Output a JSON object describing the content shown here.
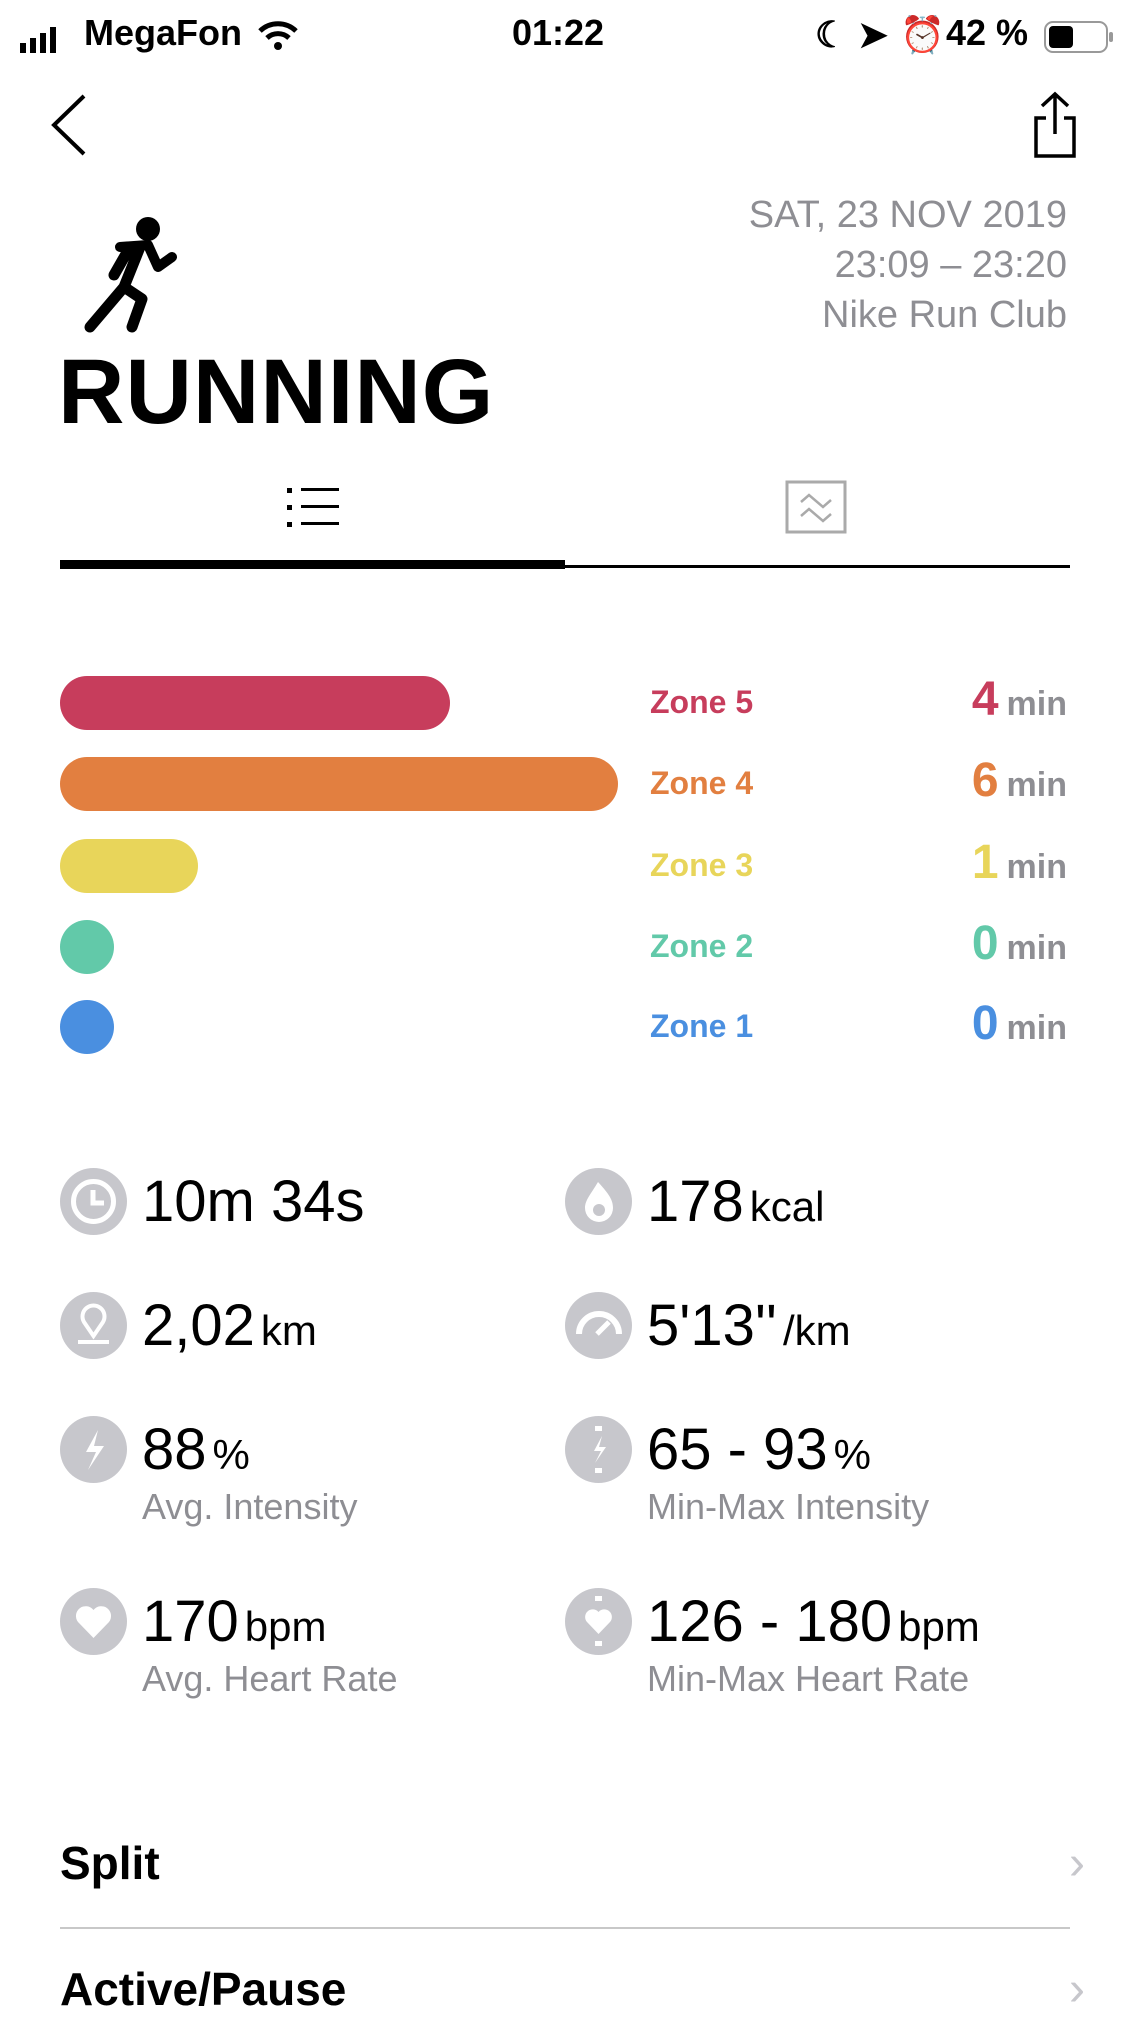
{
  "status_bar": {
    "carrier": "MegaFon",
    "time": "01:22",
    "battery": "42 %"
  },
  "header": {
    "date": "SAT, 23 NOV 2019",
    "time_range": "23:09 – 23:20",
    "source": "Nike Run Club",
    "activity": "RUNNING"
  },
  "tabs": [
    {
      "icon": "list-icon",
      "active": true
    },
    {
      "icon": "chart-icon",
      "active": false
    }
  ],
  "zones": [
    {
      "label": "Zone 5",
      "value": "4",
      "unit": "min",
      "minutes": 4,
      "color": "#c73d5c"
    },
    {
      "label": "Zone 4",
      "value": "6",
      "unit": "min",
      "minutes": 6,
      "color": "#e27f40"
    },
    {
      "label": "Zone 3",
      "value": "1",
      "unit": "min",
      "minutes": 1,
      "color": "#e8d55a"
    },
    {
      "label": "Zone 2",
      "value": "0",
      "unit": "min",
      "minutes": 0,
      "color": "#62c9a9"
    },
    {
      "label": "Zone 1",
      "value": "0",
      "unit": "min",
      "minutes": 0,
      "color": "#4a8fe0"
    }
  ],
  "stats": {
    "duration": {
      "value": "10m 34s",
      "icon": "clock-icon"
    },
    "calories": {
      "value": "178",
      "unit": "kcal",
      "icon": "flame-icon"
    },
    "distance": {
      "value": "2,02",
      "unit": "km",
      "icon": "location-icon"
    },
    "pace": {
      "value": "5'13''",
      "unit": "/km",
      "icon": "speedometer-icon"
    },
    "avg_intensity": {
      "value": "88",
      "unit": "%",
      "label": "Avg. Intensity",
      "icon": "bolt-icon"
    },
    "minmax_intensity": {
      "value": "65 - 93",
      "unit": "%",
      "label": "Min-Max Intensity",
      "icon": "bolt-range-icon"
    },
    "avg_hr": {
      "value": "170",
      "unit": "bpm",
      "label": "Avg. Heart Rate",
      "icon": "heart-icon"
    },
    "minmax_hr": {
      "value": "126 - 180",
      "unit": "bpm",
      "label": "Min-Max Heart Rate",
      "icon": "heart-range-icon"
    }
  },
  "sections": [
    {
      "label": "Split"
    },
    {
      "label": "Active/Pause"
    }
  ]
}
